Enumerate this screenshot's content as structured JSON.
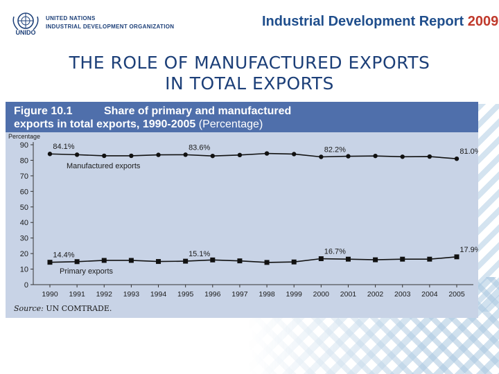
{
  "header": {
    "org_line1": "UNITED NATIONS",
    "org_line2": "INDUSTRIAL DEVELOPMENT ORGANIZATION",
    "logo_text": "UNIDO",
    "report_title": "Industrial Development Report",
    "report_year": "2009"
  },
  "slide": {
    "title_line1": "THE ROLE OF MANUFACTURED EXPORTS",
    "title_line2": "IN TOTAL EXPORTS"
  },
  "figure": {
    "number": "Figure 10.1",
    "title_line1": "Share of primary and manufactured",
    "title_line2": "exports in total exports, 1990-2005",
    "unit": "(Percentage)",
    "source_label": "Source:",
    "source_text": "UN COMTRADE."
  },
  "colors": {
    "accent": "#4f6fab",
    "panel": "#c8d3e6",
    "title": "#1c3f78",
    "brand_red": "#c0392b"
  },
  "chart_data": {
    "type": "line",
    "title": "Share of primary and manufactured exports in total exports, 1990-2005",
    "ylabel": "Percentage",
    "xlabel": "",
    "ylim": [
      0,
      90
    ],
    "yticks": [
      0,
      10,
      20,
      30,
      40,
      50,
      60,
      70,
      80,
      90
    ],
    "categories": [
      "1990",
      "1991",
      "1992",
      "1993",
      "1994",
      "1995",
      "1996",
      "1997",
      "1998",
      "1999",
      "2000",
      "2001",
      "2002",
      "2003",
      "2004",
      "2005"
    ],
    "series": [
      {
        "name": "Manufactured exports",
        "marker": "circle",
        "values": [
          84.1,
          83.6,
          82.9,
          82.9,
          83.5,
          83.6,
          82.8,
          83.4,
          84.4,
          84.0,
          82.2,
          82.6,
          82.8,
          82.3,
          82.4,
          81.0
        ],
        "labels": [
          {
            "index": 0,
            "text": "84.1%"
          },
          {
            "index": 5,
            "text": "83.6%"
          },
          {
            "index": 10,
            "text": "82.2%"
          },
          {
            "index": 15,
            "text": "81.0%"
          }
        ]
      },
      {
        "name": "Primary exports",
        "marker": "square",
        "values": [
          14.4,
          14.8,
          15.6,
          15.6,
          14.9,
          15.1,
          15.9,
          15.3,
          14.3,
          14.6,
          16.7,
          16.4,
          16.0,
          16.4,
          16.4,
          17.9
        ],
        "labels": [
          {
            "index": 0,
            "text": "14.4%"
          },
          {
            "index": 5,
            "text": "15.1%"
          },
          {
            "index": 10,
            "text": "16.7%"
          },
          {
            "index": 15,
            "text": "17.9%"
          }
        ]
      }
    ]
  }
}
